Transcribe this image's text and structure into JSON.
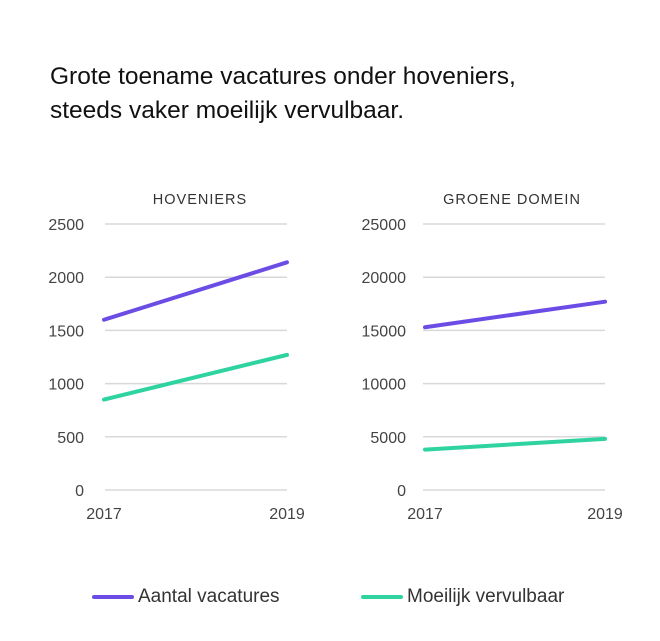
{
  "title": {
    "line1": "Grote toename vacatures onder hoveniers,",
    "line2": "steeds vaker moeilijk vervulbaar."
  },
  "colors": {
    "vacatures": "#6b4de6",
    "moeilijk": "#2ed3a0",
    "grid": "#d8d8d8"
  },
  "legend": [
    {
      "name": "Aantal vacatures",
      "color": "#6b4de6"
    },
    {
      "name": "Moeilijk vervulbaar",
      "color": "#2ed3a0"
    }
  ],
  "chart_data": [
    {
      "type": "line",
      "title": "HOVENIERS",
      "x": [
        "2017",
        "2019"
      ],
      "ylim": [
        0,
        2500
      ],
      "yticks": [
        "0",
        "500",
        "1000",
        "1500",
        "2000",
        "2500"
      ],
      "grid": true,
      "series": [
        {
          "name": "Aantal vacatures",
          "values": [
            1600,
            2140
          ]
        },
        {
          "name": "Moeilijk vervulbaar",
          "values": [
            850,
            1270
          ]
        }
      ]
    },
    {
      "type": "line",
      "title": "GROENE DOMEIN",
      "x": [
        "2017",
        "2019"
      ],
      "ylim": [
        0,
        25000
      ],
      "yticks": [
        "0",
        "5000",
        "10000",
        "15000",
        "20000",
        "25000"
      ],
      "grid": true,
      "series": [
        {
          "name": "Aantal vacatures",
          "values": [
            15300,
            17700
          ]
        },
        {
          "name": "Moeilijk vervulbaar",
          "values": [
            3800,
            4800
          ]
        }
      ]
    }
  ]
}
